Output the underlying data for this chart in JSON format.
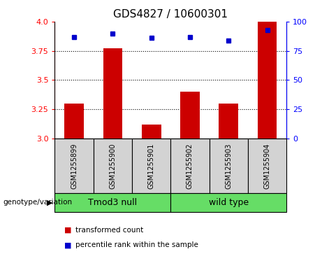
{
  "title": "GDS4827 / 10600301",
  "samples": [
    "GSM1255899",
    "GSM1255900",
    "GSM1255901",
    "GSM1255902",
    "GSM1255903",
    "GSM1255904"
  ],
  "bar_values": [
    3.3,
    3.77,
    3.12,
    3.4,
    3.3,
    4.0
  ],
  "dot_values": [
    87,
    90,
    86,
    87,
    84,
    93
  ],
  "ylim_left": [
    3.0,
    4.0
  ],
  "ylim_right": [
    0,
    100
  ],
  "yticks_left": [
    3.0,
    3.25,
    3.5,
    3.75,
    4.0
  ],
  "yticks_right": [
    0,
    25,
    50,
    75,
    100
  ],
  "grid_lines": [
    3.25,
    3.5,
    3.75
  ],
  "group_label": "genotype/variation",
  "bar_color": "#cc0000",
  "dot_color": "#0000cc",
  "legend_bar_label": "transformed count",
  "legend_dot_label": "percentile rank within the sample",
  "sample_box_color": "#d3d3d3",
  "green_color": "#66dd66",
  "bar_width": 0.5,
  "base_value": 3.0,
  "title_fontsize": 11,
  "tick_fontsize": 8,
  "label_fontsize": 9,
  "group_data": [
    {
      "label": "Tmod3 null",
      "start": 0,
      "end": 2
    },
    {
      "label": "wild type",
      "start": 3,
      "end": 5
    }
  ]
}
